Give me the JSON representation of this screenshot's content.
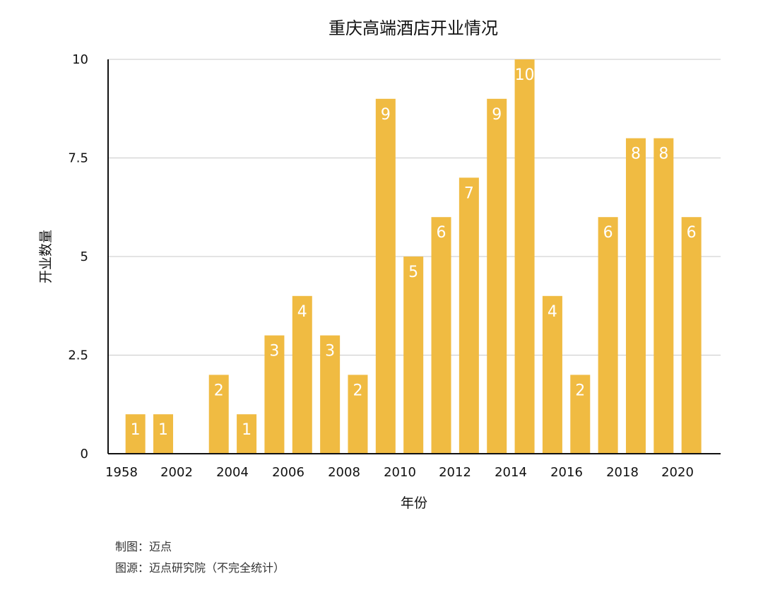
{
  "chart_data": {
    "type": "bar",
    "title": "重庆高端酒店开业情况",
    "xlabel": "年份",
    "ylabel": "开业数量",
    "ylim": [
      0,
      10
    ],
    "yticks": [
      "0",
      "2.5",
      "5",
      "7.5",
      "10"
    ],
    "grid": true,
    "bar_color": "#F0BB42",
    "categories": [
      "1958",
      "2002",
      "2003",
      "2004",
      "2005",
      "2006",
      "2007",
      "2008",
      "2009",
      "2010",
      "2011",
      "2012",
      "2013",
      "2014",
      "2015",
      "2016",
      "2017",
      "2018",
      "2019",
      "2020",
      "2021"
    ],
    "x_tick_labels": [
      "1958",
      "2002",
      "2004",
      "2006",
      "2008",
      "2010",
      "2012",
      "2014",
      "2016",
      "2018",
      "2020"
    ],
    "values": [
      1,
      1,
      0,
      2,
      1,
      3,
      4,
      3,
      2,
      9,
      5,
      6,
      7,
      9,
      10,
      4,
      2,
      6,
      8,
      8,
      6
    ]
  },
  "footer": {
    "line1": "制图：迈点",
    "line2": "图源：迈点研究院（不完全统计）"
  }
}
